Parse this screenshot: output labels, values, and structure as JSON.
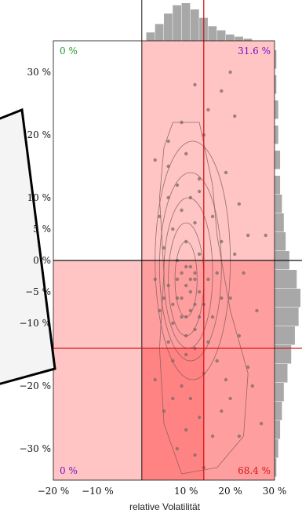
{
  "chart_data": {
    "type": "scatter",
    "xlabel": "relative Volatilität",
    "ylabel": "",
    "xlim": [
      -20,
      30
    ],
    "ylim": [
      -35,
      35
    ],
    "x_ticks": [
      "−20 %",
      "−10 %",
      "10 %",
      "20 %",
      "30 %"
    ],
    "x_tick_values": [
      -20,
      -10,
      10,
      20,
      30
    ],
    "y_ticks": [
      "30 %",
      "20 %",
      "10 %",
      "5 %",
      "0 %",
      "−5 %",
      "−10 %",
      "−20 %",
      "−30 %"
    ],
    "y_tick_values": [
      30,
      20,
      10,
      5,
      0,
      -5,
      -10,
      -20,
      -30
    ],
    "corner_labels": {
      "top_left": "0 %",
      "top_right": "31.6 %",
      "bottom_left": "0 %",
      "bottom_right": "68.4 %"
    },
    "reference_lines": {
      "x_black": 0,
      "y_black": 0,
      "x_red": 14,
      "y_red": -14
    },
    "points": [
      [
        10,
        -4
      ],
      [
        12,
        -3
      ],
      [
        8,
        -6
      ],
      [
        11,
        -8
      ],
      [
        13,
        -5
      ],
      [
        9,
        -2
      ],
      [
        7,
        -10
      ],
      [
        14,
        -7
      ],
      [
        6,
        -4
      ],
      [
        10,
        -12
      ],
      [
        12,
        -11
      ],
      [
        5,
        -6
      ],
      [
        15,
        -3
      ],
      [
        9,
        -9
      ],
      [
        11,
        -1
      ],
      [
        8,
        0
      ],
      [
        13,
        1
      ],
      [
        10,
        3
      ],
      [
        7,
        5
      ],
      [
        12,
        6
      ],
      [
        9,
        8
      ],
      [
        11,
        10
      ],
      [
        8,
        12
      ],
      [
        13,
        13
      ],
      [
        6,
        15
      ],
      [
        10,
        -15
      ],
      [
        12,
        -14
      ],
      [
        7,
        -16
      ],
      [
        14,
        -18
      ],
      [
        9,
        -20
      ],
      [
        11,
        -22
      ],
      [
        13,
        -25
      ],
      [
        10,
        -27
      ],
      [
        16,
        -28
      ],
      [
        12,
        -31
      ],
      [
        18,
        -24
      ],
      [
        20,
        -22
      ],
      [
        19,
        -19
      ],
      [
        17,
        -16
      ],
      [
        15,
        -13
      ],
      [
        16,
        -9
      ],
      [
        18,
        -6
      ],
      [
        17,
        -2
      ],
      [
        4,
        -8
      ],
      [
        3,
        -3
      ],
      [
        5,
        2
      ],
      [
        4,
        7
      ],
      [
        6,
        10
      ],
      [
        14,
        20
      ],
      [
        19,
        14
      ],
      [
        22,
        9
      ],
      [
        24,
        4
      ],
      [
        21,
        1
      ],
      [
        23,
        -2
      ],
      [
        25,
        -20
      ],
      [
        22,
        -28
      ],
      [
        20,
        30
      ],
      [
        21,
        23
      ],
      [
        18,
        27
      ],
      [
        15,
        24
      ],
      [
        12,
        28
      ],
      [
        9,
        22
      ],
      [
        6,
        19
      ],
      [
        3,
        16
      ],
      [
        10,
        17
      ],
      [
        13,
        11
      ],
      [
        16,
        7
      ],
      [
        18,
        3
      ],
      [
        20,
        -6
      ],
      [
        22,
        -12
      ],
      [
        24,
        -17
      ],
      [
        27,
        -26
      ],
      [
        14,
        -33
      ],
      [
        8,
        -30
      ],
      [
        5,
        -24
      ],
      [
        7,
        -22
      ],
      [
        6,
        -13
      ],
      [
        3,
        -19
      ],
      [
        28,
        4
      ],
      [
        26,
        -8
      ],
      [
        11,
        -5
      ],
      [
        12,
        -7
      ],
      [
        10,
        -9
      ],
      [
        9,
        -6
      ],
      [
        11,
        -3
      ],
      [
        8,
        -3
      ],
      [
        13,
        -9
      ],
      [
        10,
        -1
      ],
      [
        7,
        -7
      ],
      [
        12,
        -2
      ]
    ],
    "density_contours": [
      {
        "cx": 10,
        "cy": -3,
        "rx": 2.5,
        "ry": 6
      },
      {
        "cx": 10,
        "cy": -3,
        "rx": 4,
        "ry": 9
      },
      {
        "cx": 10.5,
        "cy": -2,
        "rx": 5.5,
        "ry": 12
      },
      {
        "cx": 11,
        "cy": -1,
        "rx": 7,
        "ry": 15
      },
      {
        "cx": 11.5,
        "cy": 0,
        "rx": 8.5,
        "ry": 19
      }
    ],
    "outer_contour_pts": [
      [
        7,
        22
      ],
      [
        13,
        22
      ],
      [
        16,
        12
      ],
      [
        17,
        4
      ],
      [
        20,
        -8
      ],
      [
        24,
        -18
      ],
      [
        23,
        -28
      ],
      [
        17,
        -33
      ],
      [
        9,
        -34
      ],
      [
        5,
        -26
      ],
      [
        4,
        -14
      ],
      [
        5,
        -2
      ],
      [
        4,
        10
      ],
      [
        5,
        18
      ]
    ],
    "top_histogram": [
      {
        "x": 2,
        "v": 4
      },
      {
        "x": 4,
        "v": 8
      },
      {
        "x": 6,
        "v": 13
      },
      {
        "x": 8,
        "v": 17
      },
      {
        "x": 10,
        "v": 18
      },
      {
        "x": 12,
        "v": 15
      },
      {
        "x": 14,
        "v": 11
      },
      {
        "x": 16,
        "v": 7
      },
      {
        "x": 18,
        "v": 5
      },
      {
        "x": 20,
        "v": 3
      },
      {
        "x": 22,
        "v": 2
      },
      {
        "x": 24,
        "v": 1
      }
    ],
    "right_histogram": [
      {
        "y": 32,
        "v": 1
      },
      {
        "y": 28,
        "v": 1
      },
      {
        "y": 24,
        "v": 2
      },
      {
        "y": 20,
        "v": 2
      },
      {
        "y": 16,
        "v": 3
      },
      {
        "y": 12,
        "v": 3
      },
      {
        "y": 9,
        "v": 4
      },
      {
        "y": 6,
        "v": 5
      },
      {
        "y": 3,
        "v": 6
      },
      {
        "y": 0,
        "v": 8
      },
      {
        "y": -3,
        "v": 12
      },
      {
        "y": -6,
        "v": 14
      },
      {
        "y": -9,
        "v": 13
      },
      {
        "y": -12,
        "v": 11
      },
      {
        "y": -15,
        "v": 9
      },
      {
        "y": -18,
        "v": 7
      },
      {
        "y": -21,
        "v": 5
      },
      {
        "y": -24,
        "v": 4
      },
      {
        "y": -27,
        "v": 3
      },
      {
        "y": -30,
        "v": 2
      },
      {
        "y": -33,
        "v": 1
      }
    ],
    "colors": {
      "quadrant_light": "#ffc4c4",
      "quadrant_mid": "#ff9e9e",
      "quadrant_dark": "#ff8383",
      "point": "#7a6a6a",
      "contour": "#7a5858",
      "red_line": "#d51717",
      "hist": "#a8a8a8",
      "green_label": "#1f9b1f",
      "purple_label": "#7a10c8",
      "red_label": "#d51717"
    }
  }
}
